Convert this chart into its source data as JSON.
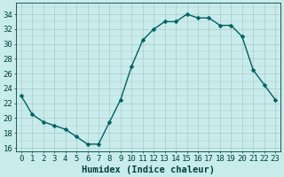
{
  "x": [
    0,
    1,
    2,
    3,
    4,
    5,
    6,
    7,
    8,
    9,
    10,
    11,
    12,
    13,
    14,
    15,
    16,
    17,
    18,
    19,
    20,
    21,
    22,
    23
  ],
  "y": [
    23,
    20.5,
    19.5,
    19,
    18.5,
    17.5,
    16.5,
    16.5,
    19.5,
    22.5,
    27,
    30.5,
    32,
    33,
    33,
    34,
    33.5,
    33.5,
    32.5,
    32.5,
    31,
    26.5,
    24.5,
    22.5
  ],
  "line_color": "#006060",
  "marker_color": "#006060",
  "bg_color": "#c8ecec",
  "grid_color": "#b0c8c8",
  "xlabel": "Humidex (Indice chaleur)",
  "ylim": [
    15.5,
    35.5
  ],
  "xlim": [
    -0.5,
    23.5
  ],
  "yticks": [
    16,
    18,
    20,
    22,
    24,
    26,
    28,
    30,
    32,
    34
  ],
  "xticks": [
    0,
    1,
    2,
    3,
    4,
    5,
    6,
    7,
    8,
    9,
    10,
    11,
    12,
    13,
    14,
    15,
    16,
    17,
    18,
    19,
    20,
    21,
    22,
    23
  ],
  "xtick_labels": [
    "0",
    "1",
    "2",
    "3",
    "4",
    "5",
    "6",
    "7",
    "8",
    "9",
    "10",
    "11",
    "12",
    "13",
    "14",
    "15",
    "16",
    "17",
    "18",
    "19",
    "20",
    "21",
    "22",
    "23"
  ],
  "font_color": "#004040",
  "marker_size": 2.5,
  "line_width": 1.0,
  "font_size": 6.5,
  "xlabel_fontsize": 7.5
}
